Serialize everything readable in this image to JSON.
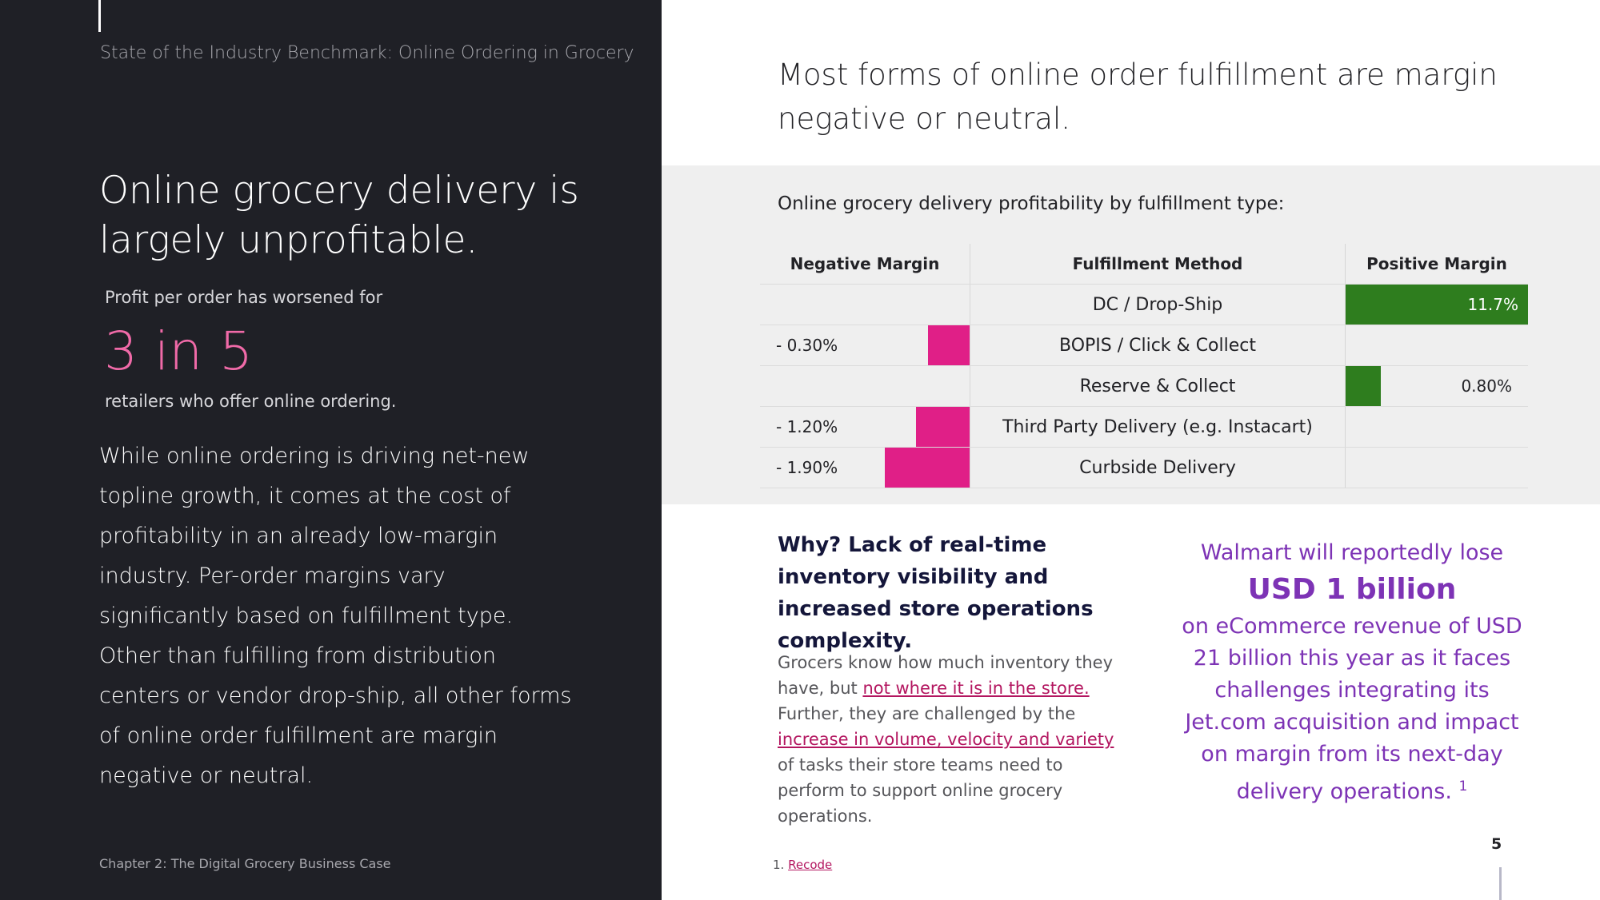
{
  "left": {
    "doc_title": "State of the Industry Benchmark: Online Ordering in Grocery",
    "headline": "Online grocery delivery is largely unprofitable.",
    "intro": "Profit per order has worsened for",
    "big_stat": "3 in 5",
    "stat_caption": "retailers who offer online ordering.",
    "body": "While online ordering is driving net-new topline growth, it comes at the cost of profitability in an already low-margin industry. Per-order margins vary significantly based on fulfillment type. Other than fulfilling from distribution centers or vendor drop-ship, all other forms of online order fulfillment are margin negative or neutral.",
    "footer": "Chapter 2: The Digital Grocery Business Case"
  },
  "right": {
    "headline": "Most forms of online order fulfillment are margin negative or neutral.",
    "table_caption": "Online grocery delivery profitability by fulfillment type:",
    "why_title": "Why? Lack of real-time inventory visibility and increased store operations complexity.",
    "why_body": {
      "part1": "Grocers know how much inventory they have, but ",
      "link1": "not where it is in the store.",
      "part2": " Further, they are challenged by the ",
      "link2": "increase in volume, velocity and variety",
      "part3": " of tasks their store teams need to perform to support online grocery operations."
    },
    "walmart": {
      "line1": "Walmart will reportedly lose",
      "big": "USD 1 billion",
      "rest": "on eCommerce revenue of USD 21 billion this year as it faces challenges integrating its Jet.com acquisition and impact on margin from its next-day delivery operations.",
      "sup": "1"
    },
    "footnote_num": "1.",
    "footnote_link": "Recode",
    "page_number": "5"
  },
  "chart_data": {
    "type": "table",
    "columns": [
      "Negative Margin",
      "Fulfillment Method",
      "Positive Margin"
    ],
    "rows": [
      {
        "method": "DC / Drop-Ship",
        "negative": null,
        "negative_label": "",
        "positive": 11.7,
        "positive_label": "11.7%"
      },
      {
        "method": "BOPIS / Click & Collect",
        "negative": 0.3,
        "negative_label": "- 0.30%",
        "positive": null,
        "positive_label": ""
      },
      {
        "method": "Reserve & Collect",
        "negative": null,
        "negative_label": "",
        "positive": 0.8,
        "positive_label": "0.80%"
      },
      {
        "method": "Third Party Delivery (e.g. Instacart)",
        "negative": 1.2,
        "negative_label": "- 1.20%",
        "positive": null,
        "positive_label": ""
      },
      {
        "method": "Curbside Delivery",
        "negative": 1.9,
        "negative_label": "- 1.90%",
        "positive": null,
        "positive_label": ""
      }
    ],
    "colors": {
      "negative": "#e01f87",
      "positive": "#2e7d1e"
    }
  }
}
